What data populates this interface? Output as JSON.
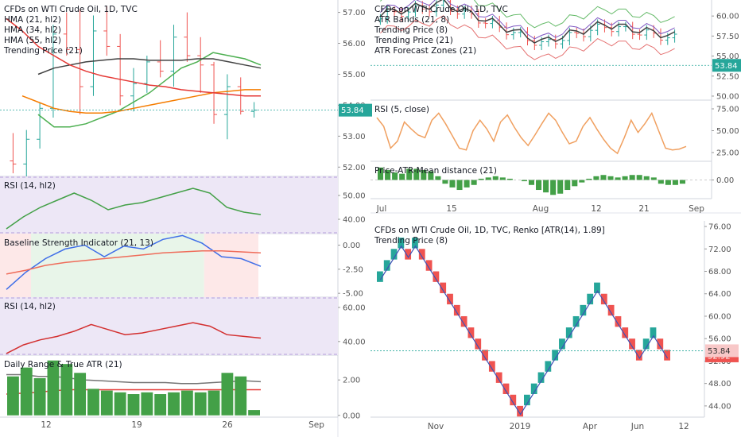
{
  "colors": {
    "bull": "#26a69a",
    "bear": "#ef5350",
    "last_price": "#26a69a",
    "renko_last": "#ef5350",
    "hma21": "#4caf50",
    "hma34": "#f57c00",
    "hma55": "#424242",
    "trend21": "#e53935",
    "rsi": "#43a047",
    "rsi_band": "#ede7f6",
    "bsi_blue": "#3f6ee8",
    "bsi_red": "#ef6c5a",
    "bsi_green_bg": "#e8f5e9",
    "bsi_red_bg": "#fde8e8",
    "rsi2": "#d32f2f",
    "volume": "#43a047",
    "atr_grey": "#757575",
    "atr_red": "#e53935",
    "orange_rsi": "#f0a060",
    "renko_up": "#26a69a",
    "renko_down": "#ef5350",
    "renko_line": "#3f51b5"
  },
  "chart_data": [
    {
      "id": "left-price",
      "type": "candlestick",
      "legend": [
        "CFDs on WTI Crude Oil, 1D, TVC",
        "HMA (21, hl2)",
        "HMA (34, hl2)",
        "HMA (55, hl2)",
        "Trending Price (21)"
      ],
      "y_ticks": [
        "57.00",
        "56.00",
        "55.00",
        "54.00",
        "53.00",
        "52.00"
      ],
      "ylim": [
        51.7,
        57.4
      ],
      "last_price": 53.84,
      "last_price_label": "53.84",
      "candles": [
        {
          "o": 52.2,
          "h": 53.1,
          "l": 51.8,
          "c": 52.1
        },
        {
          "o": 52.1,
          "h": 53.2,
          "l": 51.7,
          "c": 52.9
        },
        {
          "o": 52.9,
          "h": 54.1,
          "l": 52.6,
          "c": 53.9
        },
        {
          "o": 53.9,
          "h": 56.6,
          "l": 53.6,
          "c": 56.3
        },
        {
          "o": 56.3,
          "h": 57.0,
          "l": 55.6,
          "c": 55.8
        },
        {
          "o": 55.8,
          "h": 57.1,
          "l": 53.7,
          "c": 54.6
        },
        {
          "o": 54.6,
          "h": 56.9,
          "l": 54.3,
          "c": 56.4
        },
        {
          "o": 56.4,
          "h": 57.2,
          "l": 55.6,
          "c": 55.9
        },
        {
          "o": 55.9,
          "h": 56.3,
          "l": 54.0,
          "c": 54.3
        },
        {
          "o": 54.3,
          "h": 55.2,
          "l": 53.8,
          "c": 54.7
        },
        {
          "o": 54.7,
          "h": 55.6,
          "l": 54.4,
          "c": 55.4
        },
        {
          "o": 55.4,
          "h": 56.1,
          "l": 54.9,
          "c": 55.1
        },
        {
          "o": 55.1,
          "h": 56.6,
          "l": 54.6,
          "c": 56.2
        },
        {
          "o": 56.2,
          "h": 57.0,
          "l": 55.4,
          "c": 55.6
        },
        {
          "o": 55.6,
          "h": 56.2,
          "l": 54.4,
          "c": 55.3
        },
        {
          "o": 55.3,
          "h": 55.4,
          "l": 53.4,
          "c": 53.7
        },
        {
          "o": 53.7,
          "h": 55.0,
          "l": 52.9,
          "c": 54.6
        },
        {
          "o": 54.6,
          "h": 54.9,
          "l": 53.7,
          "c": 53.8
        },
        {
          "o": 53.8,
          "h": 54.1,
          "l": 53.6,
          "c": 53.84
        }
      ],
      "series": [
        {
          "key": "hma21",
          "values": [
            null,
            null,
            53.7,
            53.3,
            53.3,
            53.4,
            53.6,
            53.8,
            54.1,
            54.4,
            54.8,
            55.2,
            55.4,
            55.7,
            55.6,
            55.5,
            55.3
          ]
        },
        {
          "key": "hma34",
          "values": [
            null,
            54.3,
            54.1,
            53.9,
            53.8,
            53.75,
            53.75,
            53.8,
            53.9,
            54.0,
            54.1,
            54.2,
            54.3,
            54.4,
            54.45,
            54.5,
            54.5
          ]
        },
        {
          "key": "hma55",
          "values": [
            null,
            null,
            55.0,
            55.2,
            55.3,
            55.4,
            55.45,
            55.5,
            55.5,
            55.45,
            55.45,
            55.45,
            55.5,
            55.5,
            55.4,
            55.3,
            55.2
          ]
        },
        {
          "key": "trend21",
          "values": [
            56.8,
            56.4,
            55.9,
            55.6,
            55.3,
            55.1,
            54.95,
            54.85,
            54.75,
            54.65,
            54.6,
            54.5,
            54.45,
            54.4,
            54.35,
            54.3,
            54.3
          ]
        }
      ]
    },
    {
      "id": "left-rsi-1",
      "type": "line",
      "legend": [
        "RSI (14, hl2)"
      ],
      "y_ticks": [
        "50.00",
        "40.00"
      ],
      "ylim": [
        34,
        58
      ],
      "band": [
        30,
        70
      ],
      "series": [
        {
          "key": "rsi",
          "values": [
            36,
            41,
            45,
            48,
            51,
            48,
            44,
            46,
            47,
            49,
            51,
            53,
            51,
            45,
            43,
            42
          ]
        }
      ]
    },
    {
      "id": "left-bsi",
      "type": "line",
      "legend": [
        "Baseline Strength Indicator (21, 13)"
      ],
      "y_ticks": [
        "0.00",
        "-2.50",
        "-5.00"
      ],
      "ylim": [
        -5.4,
        1.2
      ],
      "regions": [
        {
          "from": 0,
          "to": 0.12,
          "color": "bsi_red_bg"
        },
        {
          "from": 0.12,
          "to": 0.79,
          "color": "bsi_green_bg"
        },
        {
          "from": 0.79,
          "to": 1.0,
          "color": "bsi_red_bg"
        }
      ],
      "series": [
        {
          "key": "bsi_blue",
          "values": [
            -4.6,
            -2.8,
            -1.4,
            -0.4,
            0.0,
            -1.2,
            -0.1,
            -0.4,
            0.6,
            1.0,
            0.2,
            -1.2,
            -1.4,
            -2.2
          ]
        },
        {
          "key": "bsi_red",
          "values": [
            -3.0,
            -2.6,
            -2.1,
            -1.8,
            -1.6,
            -1.4,
            -1.2,
            -1.0,
            -0.8,
            -0.7,
            -0.6,
            -0.6,
            -0.7,
            -0.8
          ]
        }
      ]
    },
    {
      "id": "left-rsi-2",
      "type": "line",
      "legend": [
        "RSI (14, hl2)"
      ],
      "y_ticks": [
        "60.00",
        "40.00"
      ],
      "ylim": [
        32,
        66
      ],
      "band": [
        30,
        70
      ],
      "series": [
        {
          "key": "rsi2",
          "values": [
            33,
            38,
            41,
            43,
            46,
            50,
            47,
            44,
            45,
            47,
            49,
            51,
            49,
            44,
            43,
            42
          ]
        }
      ]
    },
    {
      "id": "left-atr",
      "type": "bar",
      "legend": [
        "Daily Range & True ATR (21)"
      ],
      "y_ticks": [
        "2.00",
        "0.00"
      ],
      "ylim": [
        -0.1,
        3.4
      ],
      "values": [
        2.2,
        2.7,
        2.1,
        3.1,
        2.9,
        2.4,
        1.5,
        1.4,
        1.3,
        1.2,
        1.3,
        1.2,
        1.3,
        1.4,
        1.3,
        1.4,
        2.4,
        2.2,
        0.3
      ],
      "series": [
        {
          "key": "atr_grey",
          "values": [
            2.3,
            2.3,
            2.2,
            2.2,
            2.1,
            2.0,
            1.95,
            1.9,
            1.85,
            1.85,
            1.85,
            1.8,
            1.8,
            1.85,
            1.9,
            1.95,
            1.9
          ]
        },
        {
          "key": "atr_red",
          "values": [
            1.2,
            1.25,
            1.3,
            1.4,
            1.45,
            1.45,
            1.45,
            1.45,
            1.45,
            1.45,
            1.45,
            1.45,
            1.45,
            1.45,
            1.45,
            1.45,
            1.45
          ]
        }
      ]
    },
    {
      "id": "right-price",
      "type": "candlestick",
      "legend": [
        "CFDs on WTI Crude Oil, 1D, TVC",
        "ATR Bands (21, 8)",
        "Trending Price (8)",
        "Trending Price (21)",
        "ATR Forecast Zones (21)"
      ],
      "y_ticks": [
        "60.00",
        "57.50",
        "55.00",
        "52.50",
        "50.00"
      ],
      "ylim": [
        49.5,
        62.0
      ],
      "last_price": 53.84,
      "last_price_label": "53.84",
      "candles_note": "about 43 daily candles",
      "series_note": "bands shaded, trend lines overlaid"
    },
    {
      "id": "right-rsi",
      "type": "line",
      "legend": [
        "RSI (5, close)"
      ],
      "y_ticks": [
        "75.00",
        "50.00",
        "25.00"
      ],
      "ylim": [
        15,
        85
      ],
      "series": [
        {
          "key": "orange_rsi",
          "values": [
            65,
            55,
            30,
            38,
            60,
            52,
            45,
            42,
            62,
            70,
            58,
            44,
            30,
            28,
            50,
            62,
            52,
            38,
            60,
            68,
            54,
            42,
            33,
            45,
            58,
            70,
            62,
            48,
            35,
            38,
            55,
            65,
            52,
            40,
            30,
            24,
            42,
            62,
            48,
            58,
            70,
            50,
            30,
            28,
            29,
            32
          ]
        }
      ]
    },
    {
      "id": "right-pamd",
      "type": "bar",
      "legend": [
        "Price-ATR-Mean distance (21)"
      ],
      "y_ticks": [
        "0.00"
      ],
      "ylim": [
        -1.5,
        1.5
      ],
      "values": [
        1.0,
        0.8,
        0.6,
        0.5,
        0.9,
        0.9,
        0.8,
        0.7,
        0.3,
        -0.3,
        -0.6,
        -0.8,
        -0.6,
        -0.4,
        0.1,
        0.2,
        0.3,
        0.2,
        0.1,
        0.0,
        -0.1,
        -0.4,
        -0.8,
        -1.0,
        -1.2,
        -1.1,
        -0.8,
        -0.5,
        -0.2,
        0.1,
        0.3,
        0.4,
        0.3,
        0.2,
        0.3,
        0.4,
        0.4,
        0.3,
        0.2,
        -0.3,
        -0.4,
        -0.4,
        -0.3
      ]
    },
    {
      "id": "right-renko",
      "type": "renko",
      "legend": [
        "CFDs on WTI Crude Oil, 1D, TVC, Renko [ATR(14), 1.89]",
        "Trending Price (8)"
      ],
      "y_ticks": [
        "76.00",
        "72.00",
        "68.00",
        "64.00",
        "60.00",
        "56.00",
        "52.00",
        "48.00",
        "44.00"
      ],
      "ylim": [
        42.0,
        77.0
      ],
      "last_price": 53.84,
      "last_price_label": "53.84",
      "renko_last": 52.92,
      "renko_last_label": "52.92",
      "bricks": [
        68,
        70,
        72,
        74,
        72,
        74,
        72,
        70,
        68,
        66,
        64,
        62,
        60,
        58,
        56,
        54,
        52,
        50,
        48,
        46,
        44,
        46,
        48,
        50,
        52,
        54,
        56,
        58,
        60,
        62,
        64,
        66,
        64,
        62,
        60,
        58,
        56,
        54,
        56,
        58,
        56,
        54
      ],
      "brick_size": 1.89
    }
  ],
  "axes": {
    "left_x_labels": [
      "12",
      "19",
      "26",
      "Sep"
    ],
    "right_top_x_labels": [
      "Jul",
      "15",
      "Aug",
      "12",
      "21",
      "Sep"
    ],
    "right_bottom_x_labels": [
      "Nov",
      "2019",
      "Apr",
      "Jun",
      "12"
    ]
  }
}
